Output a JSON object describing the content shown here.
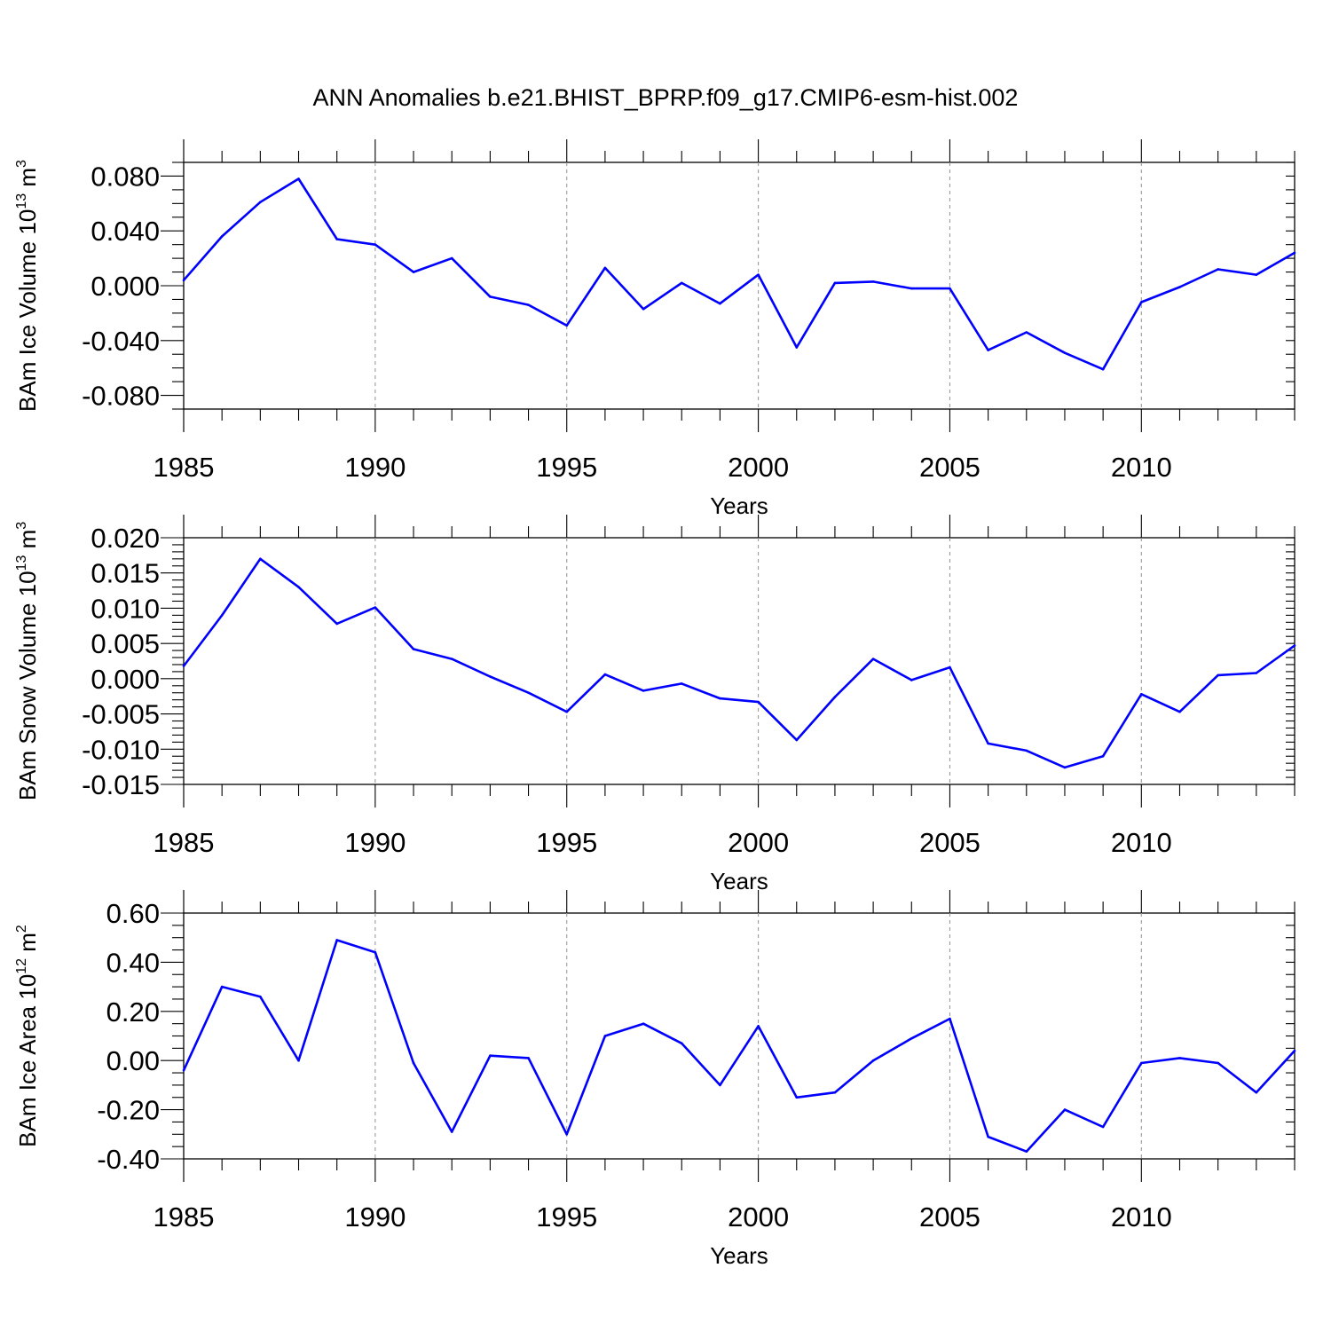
{
  "title": "ANN Anomalies b.e21.BHIST_BPRP.f09_g17.CMIP6-esm-hist.002",
  "colors": {
    "line": "#0000ff",
    "grid": "#9a9a9a",
    "axis": "#000000"
  },
  "chart_data": [
    {
      "type": "line",
      "id": "ice-volume",
      "ylabel_main": "BAm Ice Volume 10",
      "ylabel_exp": "13",
      "ylabel_unit": " m",
      "ylabel_unit_exp": "3",
      "xlabel": "Years",
      "xlim": [
        1985,
        2014
      ],
      "ylim": [
        -0.09,
        0.09
      ],
      "grid": true,
      "x_ticks": [
        1985,
        1990,
        1995,
        2000,
        2005,
        2010
      ],
      "x_tick_labels": [
        "1985",
        "1990",
        "1995",
        "2000",
        "2005",
        "2010"
      ],
      "y_ticks": [
        -0.08,
        -0.04,
        0.0,
        0.04,
        0.08
      ],
      "y_tick_labels": [
        "-0.080",
        "-0.040",
        "0.000",
        "0.040",
        "0.080"
      ],
      "y_minor_step": 0.01,
      "x": [
        1985,
        1986,
        1987,
        1988,
        1989,
        1990,
        1991,
        1992,
        1993,
        1994,
        1995,
        1996,
        1997,
        1998,
        1999,
        2000,
        2001,
        2002,
        2003,
        2004,
        2005,
        2006,
        2007,
        2008,
        2009,
        2010,
        2011,
        2012,
        2013,
        2014
      ],
      "values": [
        0.004,
        0.036,
        0.061,
        0.078,
        0.034,
        0.03,
        0.01,
        0.02,
        -0.008,
        -0.014,
        -0.029,
        0.013,
        -0.017,
        0.002,
        -0.013,
        0.008,
        -0.045,
        0.002,
        0.003,
        -0.002,
        -0.002,
        -0.047,
        -0.034,
        -0.049,
        -0.061,
        -0.012,
        -0.001,
        0.012,
        0.008,
        0.024
      ]
    },
    {
      "type": "line",
      "id": "snow-volume",
      "ylabel_main": "BAm Snow Volume 10",
      "ylabel_exp": "13",
      "ylabel_unit": " m",
      "ylabel_unit_exp": "3",
      "xlabel": "Years",
      "xlim": [
        1985,
        2014
      ],
      "ylim": [
        -0.015,
        0.02
      ],
      "grid": true,
      "x_ticks": [
        1985,
        1990,
        1995,
        2000,
        2005,
        2010
      ],
      "x_tick_labels": [
        "1985",
        "1990",
        "1995",
        "2000",
        "2005",
        "2010"
      ],
      "y_ticks": [
        -0.015,
        -0.01,
        -0.005,
        0.0,
        0.005,
        0.01,
        0.015,
        0.02
      ],
      "y_tick_labels": [
        "-0.015",
        "-0.010",
        "-0.005",
        "0.000",
        "0.005",
        "0.010",
        "0.015",
        "0.020"
      ],
      "y_minor_step": 0.001,
      "x": [
        1985,
        1986,
        1987,
        1988,
        1989,
        1990,
        1991,
        1992,
        1993,
        1994,
        1995,
        1996,
        1997,
        1998,
        1999,
        2000,
        2001,
        2002,
        2003,
        2004,
        2005,
        2006,
        2007,
        2008,
        2009,
        2010,
        2011,
        2012,
        2013,
        2014
      ],
      "values": [
        0.0018,
        0.009,
        0.017,
        0.013,
        0.0078,
        0.0101,
        0.0042,
        0.0028,
        0.0003,
        -0.002,
        -0.0047,
        0.0006,
        -0.0017,
        -0.0007,
        -0.0028,
        -0.0033,
        -0.0087,
        -0.0026,
        0.0028,
        -0.0002,
        0.0016,
        -0.0092,
        -0.0102,
        -0.0126,
        -0.011,
        -0.0022,
        -0.0047,
        0.0005,
        0.0008,
        0.0047
      ]
    },
    {
      "type": "line",
      "id": "ice-area",
      "ylabel_main": "BAm Ice Area 10",
      "ylabel_exp": "12",
      "ylabel_unit": " m",
      "ylabel_unit_exp": "2",
      "xlabel": "Years",
      "xlim": [
        1985,
        2014
      ],
      "ylim": [
        -0.4,
        0.6
      ],
      "grid": true,
      "x_ticks": [
        1985,
        1990,
        1995,
        2000,
        2005,
        2010
      ],
      "x_tick_labels": [
        "1985",
        "1990",
        "1995",
        "2000",
        "2005",
        "2010"
      ],
      "y_ticks": [
        -0.4,
        -0.2,
        0.0,
        0.2,
        0.4,
        0.6
      ],
      "y_tick_labels": [
        "-0.40",
        "-0.20",
        "0.00",
        "0.20",
        "0.40",
        "0.60"
      ],
      "y_minor_step": 0.05,
      "x": [
        1985,
        1986,
        1987,
        1988,
        1989,
        1990,
        1991,
        1992,
        1993,
        1994,
        1995,
        1996,
        1997,
        1998,
        1999,
        2000,
        2001,
        2002,
        2003,
        2004,
        2005,
        2006,
        2007,
        2008,
        2009,
        2010,
        2011,
        2012,
        2013,
        2014
      ],
      "values": [
        -0.04,
        0.3,
        0.26,
        0.0,
        0.49,
        0.44,
        -0.01,
        -0.29,
        0.02,
        0.01,
        -0.3,
        0.1,
        0.15,
        0.07,
        -0.1,
        0.14,
        -0.15,
        -0.13,
        0.0,
        0.09,
        0.17,
        -0.31,
        -0.37,
        -0.2,
        -0.27,
        -0.01,
        0.01,
        -0.01,
        -0.13,
        0.04
      ]
    }
  ]
}
